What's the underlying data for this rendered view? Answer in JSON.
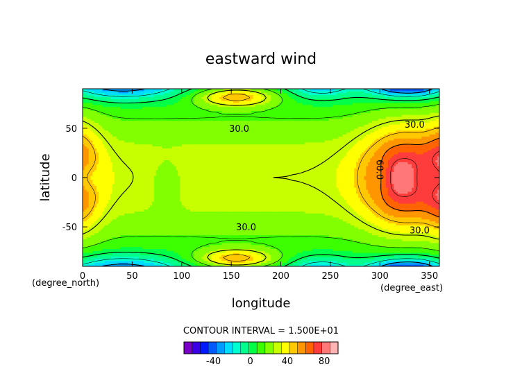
{
  "chart_data": {
    "type": "heatmap",
    "subtype": "filled-contour",
    "title": "eastward wind",
    "xlabel": "longitude",
    "ylabel": "latitude",
    "x_unit_label": "(degree_east)",
    "y_unit_label": "(degree_north)",
    "xlim": [
      0,
      360
    ],
    "ylim": [
      -90,
      90
    ],
    "x_ticks": [
      0,
      50,
      100,
      150,
      200,
      250,
      300,
      350
    ],
    "y_ticks": [
      -50,
      0,
      50
    ],
    "contour_interval_text": "CONTOUR INTERVAL = 1.500E+01",
    "contour_labels": [
      {
        "text": "30.0",
        "lon": 158,
        "lat": 50
      },
      {
        "text": "30.0",
        "lon": 165,
        "lat": -50
      },
      {
        "text": "30.0",
        "lon": 335,
        "lat": 54
      },
      {
        "text": "30.0",
        "lon": 340,
        "lat": -53
      },
      {
        "text": "60.0",
        "lon": 300,
        "lat": 8
      }
    ],
    "colorbar": {
      "colors": [
        "#7a00c8",
        "#3c00e6",
        "#0019ff",
        "#005aff",
        "#009bff",
        "#00dcff",
        "#00ffd0",
        "#00ff8c",
        "#00ff46",
        "#3cff00",
        "#82ff00",
        "#c8ff00",
        "#ffff00",
        "#ffc800",
        "#ff9600",
        "#ff6400",
        "#ff3c3c",
        "#ff7878",
        "#ffb4b4"
      ],
      "tick_labels": [
        "-40",
        "0",
        "40",
        "80"
      ],
      "tick_positions": [
        -40,
        0,
        40,
        80
      ],
      "range": [
        -72,
        95
      ]
    }
  }
}
